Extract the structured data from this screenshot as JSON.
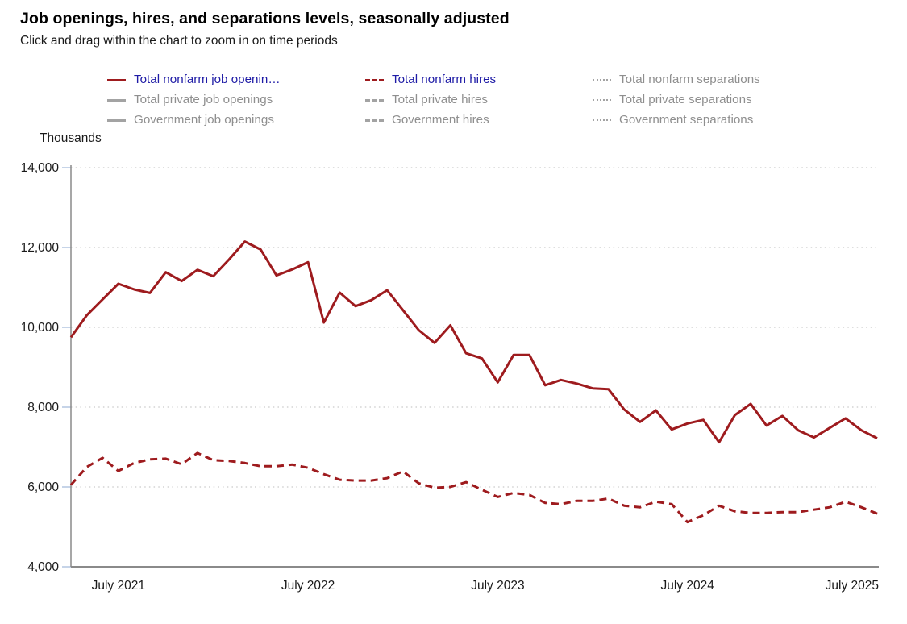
{
  "header": {
    "title": "Job openings, hires, and separations levels, seasonally adjusted",
    "subtitle": "Click and drag within the chart to zoom in on time periods"
  },
  "colors": {
    "series_active": "#9e1b1e",
    "series_inactive": "#a3a3a3",
    "label_active": "#1f1ca6",
    "label_inactive": "#8f8f8f",
    "gridline": "#c9c9c9",
    "tick": "#b3c6e0",
    "axis": "#8a8a8a",
    "text": "#1a1a1a"
  },
  "legend": {
    "items": [
      {
        "label": "Total nonfarm job openin…",
        "style": "solid",
        "active": true
      },
      {
        "label": "Total nonfarm hires",
        "style": "dashed",
        "active": true
      },
      {
        "label": "Total nonfarm separations",
        "style": "dotted",
        "active": false
      },
      {
        "label": "Total private job openings",
        "style": "solid",
        "active": false
      },
      {
        "label": "Total private hires",
        "style": "dashed",
        "active": false
      },
      {
        "label": "Total private separations",
        "style": "dotted",
        "active": false
      },
      {
        "label": "Government job openings",
        "style": "solid",
        "active": false
      },
      {
        "label": "Government hires",
        "style": "dashed",
        "active": false
      },
      {
        "label": "Government separations",
        "style": "dotted",
        "active": false
      }
    ]
  },
  "chart_data": {
    "type": "line",
    "title": "Job openings, hires, and separations levels, seasonally adjusted",
    "ylabel": "Thousands",
    "ylim": [
      4000,
      14000
    ],
    "yticks": [
      14000,
      12000,
      10000,
      8000,
      6000,
      4000
    ],
    "ytick_labels": [
      "14,000",
      "12,000",
      "10,000",
      "8,000",
      "6,000",
      "4,000"
    ],
    "grid": "horizontal dotted gridlines",
    "legend_position": "top",
    "x": [
      "Apr 2021",
      "May 2021",
      "Jun 2021",
      "Jul 2021",
      "Aug 2021",
      "Sep 2021",
      "Oct 2021",
      "Nov 2021",
      "Dec 2021",
      "Jan 2022",
      "Feb 2022",
      "Mar 2022",
      "Apr 2022",
      "May 2022",
      "Jun 2022",
      "Jul 2022",
      "Aug 2022",
      "Sep 2022",
      "Oct 2022",
      "Nov 2022",
      "Dec 2022",
      "Jan 2023",
      "Feb 2023",
      "Mar 2023",
      "Apr 2023",
      "May 2023",
      "Jun 2023",
      "Jul 2023",
      "Aug 2023",
      "Sep 2023",
      "Oct 2023",
      "Nov 2023",
      "Dec 2023",
      "Jan 2024",
      "Feb 2024",
      "Mar 2024",
      "Apr 2024",
      "May 2024",
      "Jun 2024",
      "Jul 2024",
      "Aug 2024",
      "Sep 2024",
      "Oct 2024",
      "Nov 2024",
      "Dec 2024",
      "Jan 2025",
      "Feb 2025",
      "Mar 2025",
      "Apr 2025",
      "May 2025",
      "Jun 2025",
      "Jul 2025"
    ],
    "xticks": [
      {
        "label": "July 2021",
        "index": 3,
        "align": "middle"
      },
      {
        "label": "July 2022",
        "index": 15,
        "align": "middle"
      },
      {
        "label": "July 2023",
        "index": 27,
        "align": "middle"
      },
      {
        "label": "July 2024",
        "index": 39,
        "align": "middle"
      },
      {
        "label": "July 2025",
        "index": 51,
        "align": "end"
      }
    ],
    "series": [
      {
        "name": "Total nonfarm job openings",
        "style": "solid",
        "color": "#9e1b1e",
        "values": [
          9750,
          10300,
          10700,
          11090,
          10950,
          10860,
          11380,
          11160,
          11440,
          11280,
          11700,
          12150,
          11950,
          11300,
          11450,
          11630,
          10120,
          10870,
          10530,
          10680,
          10930,
          10430,
          9930,
          9610,
          10050,
          9350,
          9220,
          8620,
          9310,
          9310,
          8550,
          8680,
          8590,
          8470,
          8450,
          7940,
          7630,
          7920,
          7440,
          7590,
          7680,
          7120,
          7800,
          8080,
          7540,
          7780,
          7420,
          7240,
          7480,
          7720,
          7420,
          7220
        ]
      },
      {
        "name": "Total nonfarm hires",
        "style": "dashed",
        "color": "#9e1b1e",
        "values": [
          6050,
          6500,
          6730,
          6400,
          6600,
          6690,
          6710,
          6570,
          6850,
          6670,
          6650,
          6600,
          6520,
          6520,
          6560,
          6480,
          6320,
          6180,
          6160,
          6160,
          6220,
          6390,
          6090,
          5980,
          6000,
          6120,
          5930,
          5750,
          5850,
          5800,
          5600,
          5570,
          5650,
          5650,
          5710,
          5530,
          5490,
          5630,
          5570,
          5120,
          5290,
          5530,
          5390,
          5350,
          5350,
          5370,
          5370,
          5430,
          5490,
          5630,
          5490,
          5330
        ]
      }
    ]
  }
}
